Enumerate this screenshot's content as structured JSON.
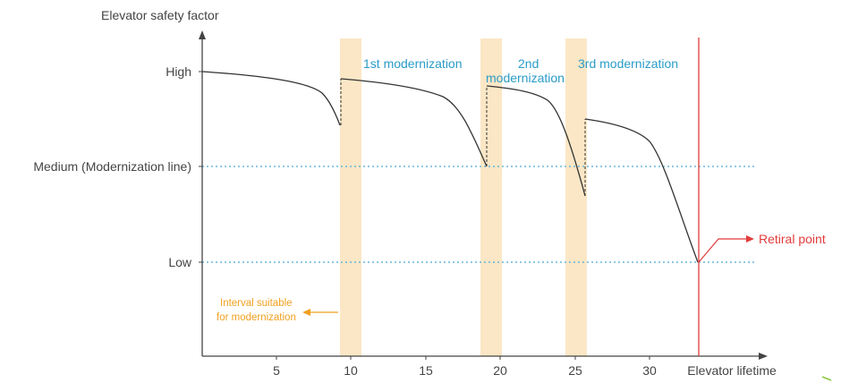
{
  "y_axis_label": "Elevator safety factor",
  "x_axis_label": "Elevator lifetime",
  "levels": {
    "high": "High",
    "medium": "Medium (Modernization line)",
    "low": "Low"
  },
  "x_ticks": [
    "5",
    "10",
    "15",
    "20",
    "25",
    "30"
  ],
  "modernizations": {
    "first": "1st modernization",
    "second_line1": "2nd",
    "second_line2": "modernization",
    "third": "3rd modernization"
  },
  "interval_note": {
    "line1": "Interval suitable",
    "line2": "for modernization"
  },
  "retiral_point": "Retiral point",
  "colors": {
    "curve": "#333333",
    "band": "#fbe7c6",
    "dotted_line": "#4aa8d8",
    "modernization_text": "#2a9bc7",
    "interval_text": "#f0a020",
    "retiral": "#e23b3b",
    "axis": "#444444"
  },
  "chart_data": {
    "type": "line",
    "xlabel": "Elevator lifetime",
    "ylabel": "Elevator safety factor",
    "x_ticks": [
      5,
      10,
      15,
      20,
      25,
      30
    ],
    "y_levels": [
      "Low",
      "Medium (Modernization line)",
      "High"
    ],
    "modernization_intervals": [
      [
        9.5,
        10.5
      ],
      [
        18.7,
        19.7
      ],
      [
        24.2,
        25.2
      ]
    ],
    "retiral_x": 33.5
  }
}
